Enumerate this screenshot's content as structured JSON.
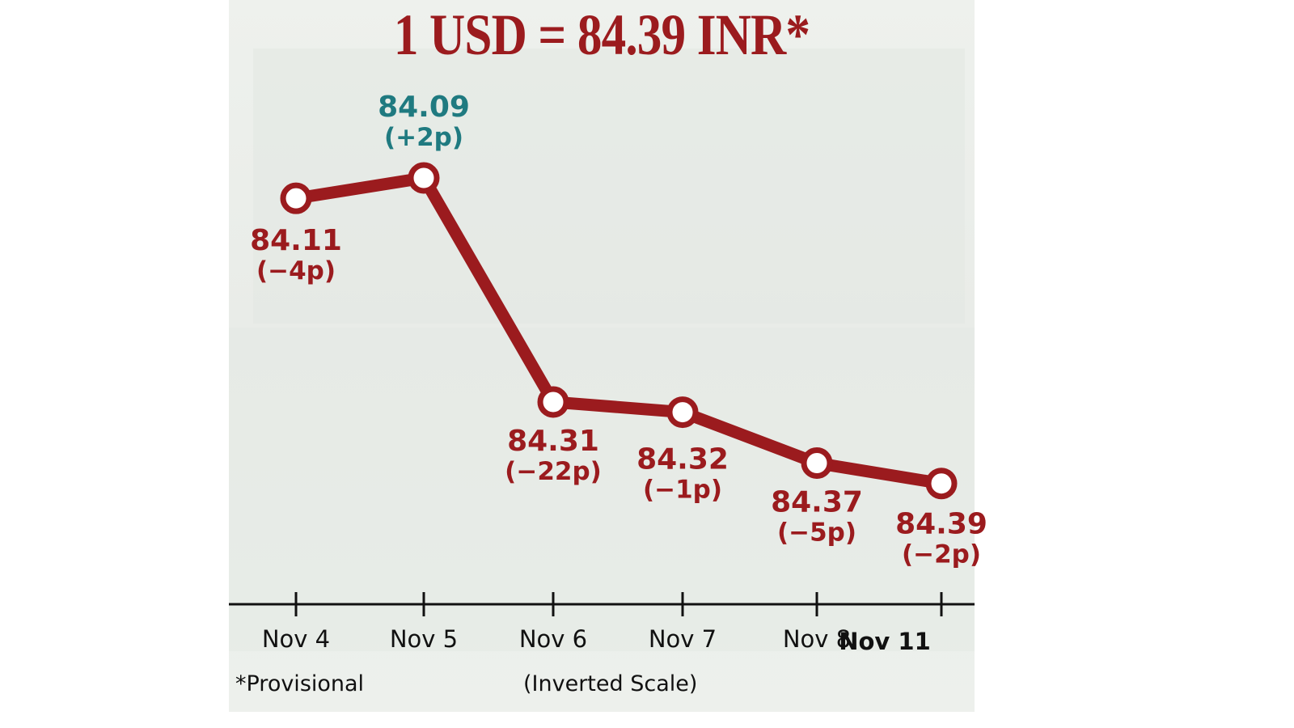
{
  "chart_data": {
    "type": "line",
    "title": "1 USD = 84.39 INR*",
    "categories": [
      "Nov 4",
      "Nov 5",
      "Nov 6",
      "Nov 7",
      "Nov 8",
      "Nov 11"
    ],
    "values": [
      84.11,
      84.09,
      84.31,
      84.32,
      84.37,
      84.39
    ],
    "changes": [
      "(−4p)",
      "(+2p)",
      "(−22p)",
      "(−1p)",
      "(−5p)",
      "(−2p)"
    ],
    "value_labels": [
      "84.11",
      "84.09",
      "84.31",
      "84.32",
      "84.37",
      "84.39"
    ],
    "y_inverted": true,
    "footnote": "*Provisional",
    "scale_note": "(Inverted Scale)",
    "colors": {
      "line": "#9b1b1e",
      "rise": "#1f7a80",
      "fall": "#9b1b1e"
    }
  }
}
